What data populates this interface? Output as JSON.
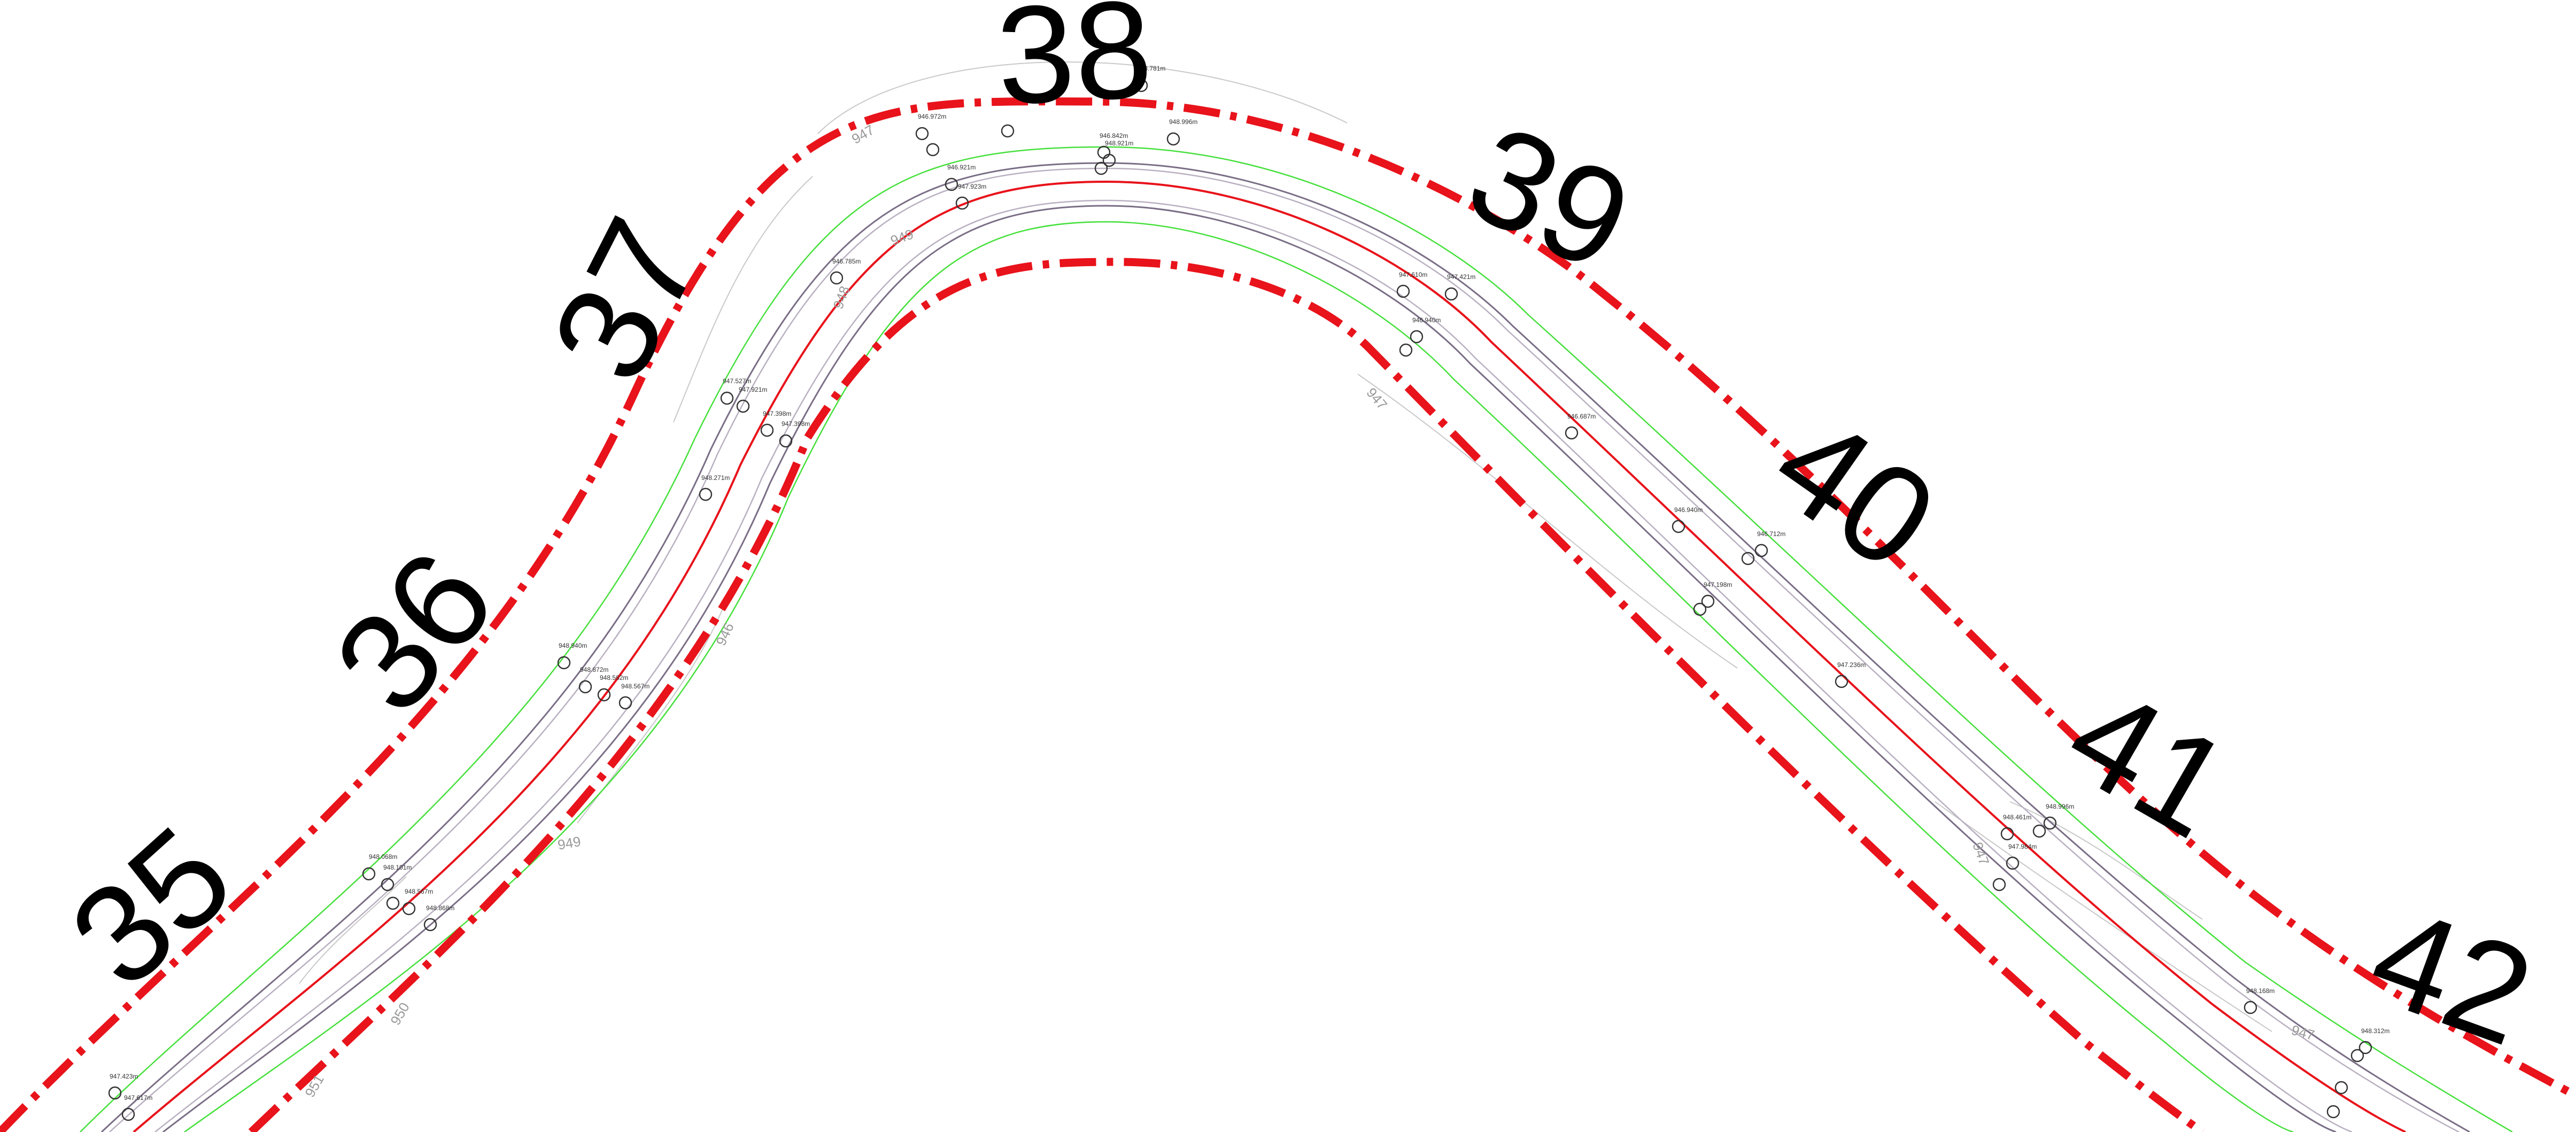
{
  "stations": [
    "35",
    "36",
    "37",
    "38",
    "39",
    "40",
    "41",
    "42"
  ],
  "contour_labels": [
    "947",
    "948",
    "949",
    "946",
    "949",
    "947",
    "950",
    "951",
    "947",
    "947"
  ],
  "elevation_labels": [
    "947.423m",
    "947.617m",
    "948.068m",
    "948.101m",
    "948.567m",
    "948.868m",
    "948.940m",
    "948.872m",
    "948.562m",
    "948.567m",
    "947.527m",
    "947.921m",
    "947.398m",
    "947.398m",
    "948.271m",
    "946.785m",
    "946.972m",
    "946.921m",
    "947.923m",
    "946.842m",
    "948.781m",
    "948.996m",
    "948.921m",
    "947.610m",
    "947.421m",
    "946.940m",
    "946.687m",
    "946.940m",
    "946.712m",
    "947.198m",
    "947.236m",
    "948.461m",
    "948.996m",
    "947.984m",
    "948.168m",
    "948.312m"
  ],
  "colors": {
    "right_of_way": "#e8131b",
    "centerline": "#e8131b",
    "road_edge": "#7a6e86",
    "road_edge_inner": "#b9b0c1",
    "shoulder": "#46e03c",
    "contour": "#c9c9c9",
    "station_text": "#000000",
    "contour_text": "#9a9a9a"
  }
}
